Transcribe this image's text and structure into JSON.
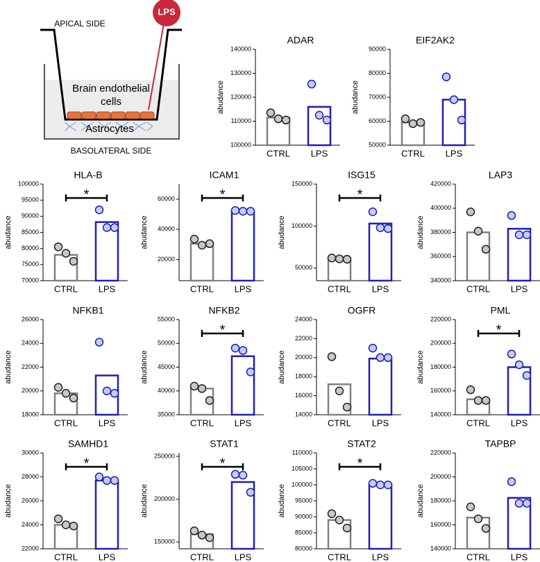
{
  "diagram": {
    "apical": "APICAL SIDE",
    "lps": "LPS",
    "endothelial_1": "Brain endothelial",
    "endothelial_2": "cells",
    "astrocytes": "Astrocytes",
    "basolateral": "BASOLATERAL SIDE"
  },
  "style": {
    "bar_colors": [
      "#808080",
      "#1f1fb4"
    ],
    "point_fills": [
      "#c8c8c8",
      "#c4ccf2"
    ],
    "point_strokes": [
      "#222222",
      "#1f1fb4"
    ]
  },
  "chart_data": [
    {
      "type": "bar",
      "title": "ADAR",
      "y_label": "abudance",
      "categories": [
        "CTRL",
        "LPS"
      ],
      "values": [
        111500,
        116000
      ],
      "points": [
        [
          113500,
          111000,
          110500
        ],
        [
          125500,
          112500,
          110500
        ]
      ],
      "ylim": [
        100000,
        140000
      ],
      "yticks": [
        100000,
        110000,
        120000,
        130000,
        140000
      ]
    },
    {
      "type": "bar",
      "title": "EIF2AK2",
      "y_label": "abudance",
      "categories": [
        "CTRL",
        "LPS"
      ],
      "values": [
        59500,
        69000
      ],
      "points": [
        [
          61000,
          59000,
          59500
        ],
        [
          78500,
          69000,
          60500
        ]
      ],
      "ylim": [
        50000,
        90000
      ],
      "yticks": [
        50000,
        60000,
        70000,
        80000,
        90000
      ]
    },
    {
      "type": "bar",
      "title": "HLA-B",
      "y_label": "abudance",
      "categories": [
        "CTRL",
        "LPS"
      ],
      "values": [
        78000,
        88200
      ],
      "points": [
        [
          80500,
          78500,
          76000
        ],
        [
          92000,
          86500,
          86500
        ]
      ],
      "ylim": [
        70000,
        100000
      ],
      "yticks": [
        70000,
        75000,
        80000,
        85000,
        90000,
        95000,
        100000
      ],
      "significance": "*"
    },
    {
      "type": "bar",
      "title": "ICAM1",
      "y_label": "abudance",
      "categories": [
        "CTRL",
        "LPS"
      ],
      "values": [
        30500,
        52000
      ],
      "points": [
        [
          33500,
          29500,
          30500
        ],
        [
          52500,
          52000,
          52000
        ]
      ],
      "ylim": [
        6000,
        70000
      ],
      "yticks": [
        20000,
        40000,
        60000
      ],
      "significance": "*"
    },
    {
      "type": "bar",
      "title": "ISG15",
      "y_label": "abudance",
      "categories": [
        "CTRL",
        "LPS"
      ],
      "values": [
        61000,
        103000
      ],
      "points": [
        [
          62000,
          61000,
          60500
        ],
        [
          117000,
          98000,
          97000
        ]
      ],
      "ylim": [
        35000,
        150000
      ],
      "yticks": [
        50000,
        100000,
        150000
      ],
      "significance": "*"
    },
    {
      "type": "bar",
      "title": "LAP3",
      "y_label": "abudance",
      "categories": [
        "CTRL",
        "LPS"
      ],
      "values": [
        380000,
        383000
      ],
      "points": [
        [
          397000,
          381000,
          366000
        ],
        [
          394000,
          378000,
          378000
        ]
      ],
      "ylim": [
        340000,
        420000
      ],
      "yticks": [
        340000,
        360000,
        380000,
        400000,
        420000
      ]
    },
    {
      "type": "bar",
      "title": "NFKB1",
      "y_label": "abudance",
      "categories": [
        "CTRL",
        "LPS"
      ],
      "values": [
        19800,
        21300
      ],
      "points": [
        [
          20300,
          19800,
          19400
        ],
        [
          24100,
          20000,
          19800
        ]
      ],
      "ylim": [
        18000,
        26000
      ],
      "yticks": [
        18000,
        20000,
        22000,
        24000,
        26000
      ]
    },
    {
      "type": "bar",
      "title": "NFKB2",
      "y_label": "abudance",
      "categories": [
        "CTRL",
        "LPS"
      ],
      "values": [
        40500,
        47300
      ],
      "points": [
        [
          41000,
          40500,
          38000
        ],
        [
          49000,
          48500,
          44000
        ]
      ],
      "ylim": [
        35000,
        55000
      ],
      "yticks": [
        35000,
        40000,
        45000,
        50000,
        55000
      ],
      "significance": "*"
    },
    {
      "type": "bar",
      "title": "OGFR",
      "y_label": "abudance",
      "categories": [
        "CTRL",
        "LPS"
      ],
      "values": [
        17200,
        19900
      ],
      "points": [
        [
          20100,
          16500,
          14800
        ],
        [
          21000,
          20000,
          20000
        ]
      ],
      "ylim": [
        14000,
        24000
      ],
      "yticks": [
        14000,
        16000,
        18000,
        20000,
        22000,
        24000
      ]
    },
    {
      "type": "bar",
      "title": "PML",
      "y_label": "abudance",
      "categories": [
        "CTRL",
        "LPS"
      ],
      "values": [
        153000,
        180000
      ],
      "points": [
        [
          161000,
          152000,
          152000
        ],
        [
          191000,
          182000,
          173000
        ]
      ],
      "ylim": [
        140000,
        220000
      ],
      "yticks": [
        140000,
        160000,
        180000,
        200000,
        220000
      ],
      "significance": "*"
    },
    {
      "type": "bar",
      "title": "SAMHD1",
      "y_label": "abudance",
      "categories": [
        "CTRL",
        "LPS"
      ],
      "values": [
        24000,
        27700
      ],
      "points": [
        [
          24500,
          24000,
          23900
        ],
        [
          28000,
          27700,
          27700
        ]
      ],
      "ylim": [
        22000,
        30000
      ],
      "yticks": [
        22000,
        24000,
        26000,
        28000,
        30000
      ],
      "significance": "*"
    },
    {
      "type": "bar",
      "title": "STAT1",
      "y_label": "abudance",
      "categories": [
        "CTRL",
        "LPS"
      ],
      "values": [
        159000,
        220000
      ],
      "points": [
        [
          163000,
          158000,
          155000
        ],
        [
          229000,
          228000,
          208000
        ]
      ],
      "ylim": [
        142000,
        254000
      ],
      "yticks": [
        150000,
        200000,
        250000
      ],
      "significance": "*"
    },
    {
      "type": "bar",
      "title": "STAT2",
      "y_label": "abudance",
      "categories": [
        "CTRL",
        "LPS"
      ],
      "values": [
        89000,
        100000
      ],
      "points": [
        [
          91000,
          89000,
          86500
        ],
        [
          100500,
          100000,
          100000
        ]
      ],
      "ylim": [
        80000,
        110000
      ],
      "yticks": [
        80000,
        85000,
        90000,
        95000,
        100000,
        105000,
        110000
      ],
      "significance": "*"
    },
    {
      "type": "bar",
      "title": "TAPBP",
      "y_label": "abudance",
      "categories": [
        "CTRL",
        "LPS"
      ],
      "values": [
        166000,
        182500
      ],
      "points": [
        [
          175000,
          165000,
          157000
        ],
        [
          196000,
          178000,
          178000
        ]
      ],
      "ylim": [
        140000,
        220000
      ],
      "yticks": [
        140000,
        160000,
        180000,
        200000,
        220000
      ]
    }
  ]
}
